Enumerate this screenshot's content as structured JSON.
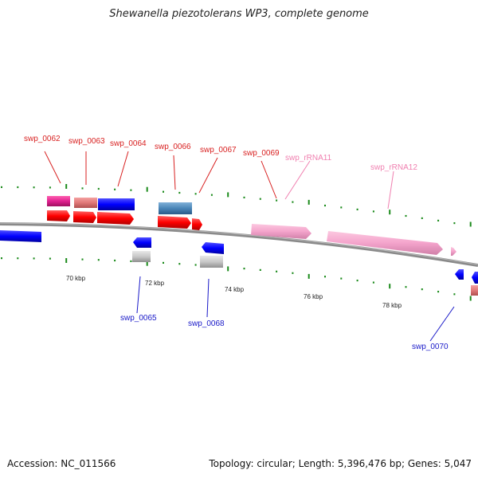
{
  "title": "Shewanella piezotolerans WP3, complete genome",
  "footer": {
    "accession": "Accession: NC_011566",
    "topology": "Topology: circular; Length: 5,396,476 bp; Genes: 5,047"
  },
  "scale_labels": [
    "70 kbp",
    "72 kbp",
    "74 kbp",
    "76 kbp",
    "78 kbp"
  ],
  "genes_top": [
    {
      "label": "swp_0062",
      "color": "#d82020"
    },
    {
      "label": "swp_0063",
      "color": "#d82020"
    },
    {
      "label": "swp_0064",
      "color": "#d82020"
    },
    {
      "label": "swp_0066",
      "color": "#d82020"
    },
    {
      "label": "swp_0067",
      "color": "#d82020"
    },
    {
      "label": "swp_0069",
      "color": "#d82020"
    },
    {
      "label": "swp_rRNA11",
      "color": "#f080b0"
    },
    {
      "label": "swp_rRNA12",
      "color": "#f080b0"
    }
  ],
  "genes_bottom": [
    {
      "label": "swp_0065",
      "color": "#1818c8"
    },
    {
      "label": "swp_0068",
      "color": "#1818c8"
    },
    {
      "label": "swp_0070",
      "color": "#1818c8"
    }
  ],
  "colors": {
    "forward_cds": "#ff0000",
    "reverse_cds": "#0000ff",
    "rrna": "#f4a4cc",
    "backbone": "#888888",
    "tick": "#1a8a1a"
  }
}
